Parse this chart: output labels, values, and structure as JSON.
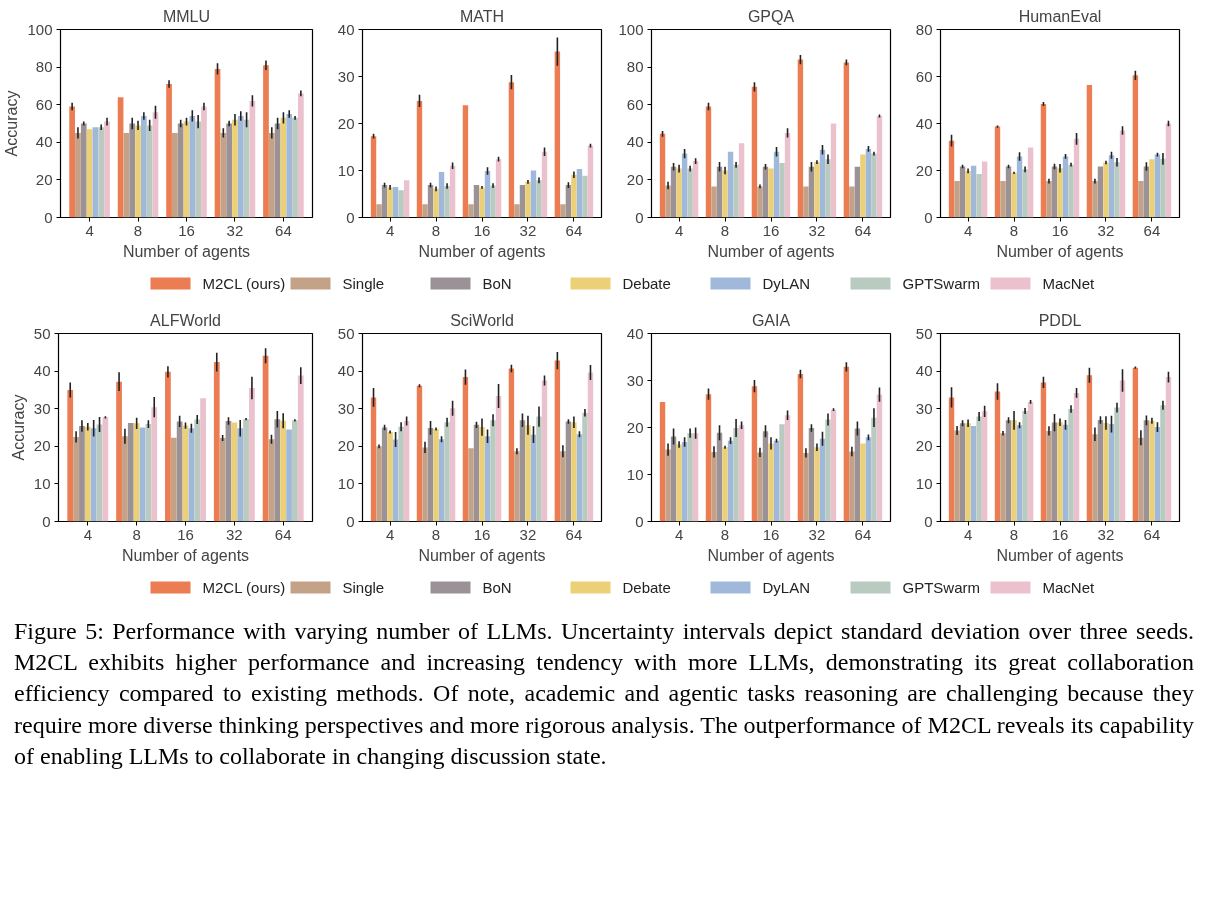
{
  "chart_data": [
    {
      "type": "bar",
      "title": "MMLU",
      "xlabel": "Number of agents",
      "ylabel": "Accuracy",
      "categories": [
        "4",
        "8",
        "16",
        "32",
        "64"
      ],
      "ylim": [
        0,
        100
      ],
      "yticks": [
        0,
        20,
        40,
        60,
        80,
        100
      ],
      "legend": "bottom",
      "series": [
        {
          "name": "M2CL (ours)",
          "color": "#ec7c52",
          "values": [
            59,
            64,
            71,
            79,
            81
          ],
          "errors": [
            2,
            null,
            2,
            3,
            2.5
          ]
        },
        {
          "name": "Single",
          "color": "#c4a287",
          "values": [
            45,
            45,
            45,
            45,
            45
          ],
          "errors": [
            3,
            null,
            null,
            2.5,
            3
          ]
        },
        {
          "name": "BoN",
          "color": "#9b9297",
          "values": [
            50,
            50,
            50,
            50,
            50
          ],
          "errors": [
            1,
            3,
            2,
            1.5,
            3
          ]
        },
        {
          "name": "Debate",
          "color": "#ebd077",
          "values": [
            47,
            49,
            51,
            52,
            53
          ],
          "errors": [
            null,
            2.5,
            2,
            3,
            3
          ]
        },
        {
          "name": "DyLAN",
          "color": "#a0b9da",
          "values": [
            48,
            54,
            54,
            54,
            55
          ],
          "errors": [
            null,
            2,
            3,
            2.5,
            2
          ]
        },
        {
          "name": "GPTSwarm",
          "color": "#b9cac1",
          "values": [
            48,
            49,
            51,
            52,
            53
          ],
          "errors": [
            1.5,
            3,
            3.5,
            4,
            1
          ]
        },
        {
          "name": "MacNet",
          "color": "#eac1cc",
          "values": [
            51,
            56,
            59,
            62,
            66
          ],
          "errors": [
            2,
            3.5,
            2,
            3,
            1.5
          ]
        }
      ]
    },
    {
      "type": "bar",
      "title": "MATH",
      "xlabel": "Number of agents",
      "categories": [
        "4",
        "8",
        "16",
        "32",
        "64"
      ],
      "ylim": [
        0,
        40
      ],
      "yticks": [
        0,
        10,
        20,
        30,
        40
      ],
      "series": [
        {
          "color": "#ec7c52",
          "values": [
            17.3,
            24.8,
            23.9,
            28.8,
            35.3
          ],
          "errors": [
            0.5,
            1.3,
            null,
            1.5,
            3
          ]
        },
        {
          "color": "#c4a287",
          "values": [
            2.8,
            2.8,
            2.8,
            2.8,
            2.8
          ]
        },
        {
          "color": "#9b9297",
          "values": [
            6.9,
            6.9,
            6.9,
            6.9,
            6.9
          ],
          "errors": [
            0.5,
            0.5,
            null,
            null,
            0.6
          ]
        },
        {
          "color": "#ebd077",
          "values": [
            6.4,
            6.1,
            6.4,
            7.6,
            9.1
          ],
          "errors": [
            0.5,
            0.5,
            0.3,
            0.4,
            0.7
          ]
        },
        {
          "color": "#a0b9da",
          "values": [
            6.5,
            9.7,
            9.9,
            10.0,
            10.3
          ],
          "errors": [
            null,
            null,
            0.8,
            null,
            null
          ]
        },
        {
          "color": "#b9cac1",
          "values": [
            5.8,
            6.7,
            6.8,
            7.9,
            8.9
          ],
          "errors": [
            null,
            0.6,
            0.5,
            0.6,
            null
          ]
        },
        {
          "color": "#eac1cc",
          "values": [
            7.9,
            11.0,
            12.4,
            14.0,
            15.3
          ],
          "errors": [
            null,
            0.7,
            0.5,
            0.9,
            0.4
          ]
        }
      ]
    },
    {
      "type": "bar",
      "title": "GPQA",
      "xlabel": "Number of agents",
      "categories": [
        "4",
        "8",
        "16",
        "32",
        "64"
      ],
      "ylim": [
        0,
        100
      ],
      "yticks": [
        0,
        20,
        40,
        60,
        80,
        100
      ],
      "series": [
        {
          "color": "#ec7c52",
          "values": [
            44.5,
            59,
            69.5,
            84,
            82.5
          ],
          "errors": [
            1.5,
            2,
            2.5,
            2.5,
            1.5
          ]
        },
        {
          "color": "#c4a287",
          "values": [
            17,
            16.5,
            16.5,
            16.5,
            16.5
          ],
          "errors": [
            2,
            null,
            1,
            null,
            null
          ]
        },
        {
          "color": "#9b9297",
          "values": [
            27,
            27,
            27,
            27,
            27
          ],
          "errors": [
            2,
            2.5,
            1.5,
            2.5,
            null
          ]
        },
        {
          "color": "#ebd077",
          "values": [
            26,
            25,
            26,
            29.5,
            33.5
          ],
          "errors": [
            2,
            2,
            null,
            1,
            null
          ]
        },
        {
          "color": "#a0b9da",
          "values": [
            34,
            35,
            35,
            36,
            36.5
          ],
          "errors": [
            2.5,
            null,
            2.5,
            2.5,
            1.5
          ]
        },
        {
          "color": "#b9cac1",
          "values": [
            26,
            28,
            29,
            31,
            34
          ],
          "errors": [
            1.5,
            1.5,
            null,
            2.5,
            1
          ]
        },
        {
          "color": "#eac1cc",
          "values": [
            30,
            39.5,
            45,
            50,
            54
          ],
          "errors": [
            1.5,
            null,
            2.5,
            null,
            0.8
          ]
        }
      ]
    },
    {
      "type": "bar",
      "title": "HumanEval",
      "xlabel": "Number of agents",
      "categories": [
        "4",
        "8",
        "16",
        "32",
        "64"
      ],
      "ylim": [
        0,
        80
      ],
      "yticks": [
        0,
        20,
        40,
        60,
        80
      ],
      "series": [
        {
          "color": "#ec7c52",
          "values": [
            32.7,
            38.7,
            48.3,
            56.4,
            60.5
          ],
          "errors": [
            2.5,
            0.5,
            0.8,
            null,
            2
          ]
        },
        {
          "color": "#c4a287",
          "values": [
            15.5,
            15.5,
            15.5,
            15.5,
            15.5
          ],
          "errors": [
            null,
            null,
            1,
            1,
            null
          ]
        },
        {
          "color": "#9b9297",
          "values": [
            21.7,
            21.7,
            21.7,
            21.7,
            21.7
          ],
          "errors": [
            0.7,
            0.7,
            1.2,
            null,
            1.8
          ]
        },
        {
          "color": "#ebd077",
          "values": [
            19.8,
            19,
            21,
            23.4,
            24.8
          ],
          "errors": [
            1,
            0.5,
            1.8,
            0.7,
            null
          ]
        },
        {
          "color": "#a0b9da",
          "values": [
            22,
            26,
            26,
            26.5,
            26.8
          ],
          "errors": [
            null,
            1.8,
            1,
            1.5,
            0.8
          ]
        },
        {
          "color": "#b9cac1",
          "values": [
            18.5,
            20.5,
            22.5,
            23.5,
            25
          ],
          "errors": [
            null,
            1.2,
            0.8,
            1.8,
            2.5
          ]
        },
        {
          "color": "#eac1cc",
          "values": [
            23.8,
            29.8,
            33.5,
            37,
            40
          ],
          "errors": [
            null,
            null,
            2.5,
            1.8,
            1.2
          ]
        }
      ]
    },
    {
      "type": "bar",
      "title": "ALFWorld",
      "xlabel": "Number of agents",
      "ylabel": "Accuracy",
      "categories": [
        "4",
        "8",
        "16",
        "32",
        "64"
      ],
      "ylim": [
        0,
        50
      ],
      "yticks": [
        0,
        10,
        20,
        30,
        40,
        50
      ],
      "legend": "bottom",
      "series": [
        {
          "name": "M2CL (ours)",
          "color": "#ec7c52",
          "values": [
            35,
            37.2,
            39.8,
            42.4,
            44.1
          ],
          "errors": [
            2,
            2.5,
            1.5,
            2.5,
            2
          ]
        },
        {
          "name": "Single",
          "color": "#c4a287",
          "values": [
            22.5,
            22.7,
            22.3,
            22.2,
            21.9
          ],
          "errors": [
            1.5,
            2,
            null,
            0.8,
            1.2
          ]
        },
        {
          "name": "BoN",
          "color": "#9b9297",
          "values": [
            25.4,
            26.2,
            26.6,
            26.7,
            27.2
          ],
          "errors": [
            1.5,
            null,
            1.5,
            1,
            2.2
          ]
        },
        {
          "name": "Debate",
          "color": "#ebd077",
          "values": [
            25.2,
            26.1,
            25.5,
            26.3,
            26.8
          ],
          "errors": [
            1,
            1.5,
            0.8,
            null,
            2
          ]
        },
        {
          "name": "DyLAN",
          "color": "#a0b9da",
          "values": [
            24.8,
            25,
            24.8,
            24.8,
            24.5
          ],
          "errors": [
            2.2,
            null,
            1.2,
            2.2,
            null
          ]
        },
        {
          "name": "GPTSwarm",
          "color": "#b9cac1",
          "values": [
            25.8,
            25.9,
            27.1,
            27.2,
            26.9
          ],
          "errors": [
            2,
            1,
            1.2,
            0.3,
            0.3
          ]
        },
        {
          "name": "MacNet",
          "color": "#eac1cc",
          "values": [
            27.7,
            30.4,
            32.8,
            35.5,
            38.8
          ],
          "errors": [
            0.3,
            2.7,
            null,
            3,
            2.2
          ]
        }
      ]
    },
    {
      "type": "bar",
      "title": "SciWorld",
      "xlabel": "Number of agents",
      "categories": [
        "4",
        "8",
        "16",
        "32",
        "64"
      ],
      "ylim": [
        0,
        50
      ],
      "yticks": [
        0,
        10,
        20,
        30,
        40,
        50
      ],
      "series": [
        {
          "color": "#ec7c52",
          "values": [
            33,
            36.1,
            38.4,
            40.7,
            42.8
          ],
          "errors": [
            2.5,
            0.4,
            2,
            1,
            2.3
          ]
        },
        {
          "color": "#c4a287",
          "values": [
            20,
            19.7,
            19.5,
            18.7,
            18.7
          ],
          "errors": [
            0.5,
            1.5,
            null,
            0.8,
            1.6
          ]
        },
        {
          "color": "#9b9297",
          "values": [
            25,
            24.9,
            25.7,
            26.9,
            26.6
          ],
          "errors": [
            0.7,
            1.8,
            0.8,
            1.8,
            0.6
          ]
        },
        {
          "color": "#ebd077",
          "values": [
            23.8,
            24.6,
            25.1,
            25.6,
            26.4
          ],
          "errors": [
            0.4,
            0.4,
            2.3,
            2.5,
            1.5
          ]
        },
        {
          "color": "#a0b9da",
          "values": [
            21.8,
            21.9,
            22.7,
            23.1,
            23.2
          ],
          "errors": [
            2,
            0.8,
            1.8,
            2.2,
            0.8
          ]
        },
        {
          "color": "#b9cac1",
          "values": [
            25.2,
            26.4,
            26.9,
            27.9,
            28.9
          ],
          "errors": [
            1.2,
            1.2,
            1.6,
            2.7,
            1
          ]
        },
        {
          "color": "#eac1cc",
          "values": [
            26.7,
            30.1,
            33.4,
            37.5,
            39.6
          ],
          "errors": [
            1.2,
            2,
            3.2,
            1.3,
            2
          ]
        }
      ]
    },
    {
      "type": "bar",
      "title": "GAIA",
      "xlabel": "Number of agents",
      "categories": [
        "4",
        "8",
        "16",
        "32",
        "64"
      ],
      "ylim": [
        0,
        40
      ],
      "yticks": [
        0,
        10,
        20,
        30,
        40
      ],
      "series": [
        {
          "color": "#ec7c52",
          "values": [
            25.4,
            27.1,
            28.8,
            31.4,
            32.9
          ],
          "errors": [
            null,
            1.2,
            1.3,
            0.9,
            1
          ]
        },
        {
          "color": "#c4a287",
          "values": [
            15.3,
            14.8,
            14.7,
            14.6,
            14.9
          ],
          "errors": [
            1.3,
            1.2,
            1,
            1,
            1
          ]
        },
        {
          "color": "#9b9297",
          "values": [
            18.1,
            18.9,
            19.2,
            19.9,
            19.8
          ],
          "errors": [
            1.7,
            1.6,
            1.3,
            0.8,
            1.5
          ]
        },
        {
          "color": "#ebd077",
          "values": [
            16.4,
            15.8,
            16.6,
            15.8,
            16.6
          ],
          "errors": [
            0.7,
            0.3,
            1.3,
            0.8,
            null
          ]
        },
        {
          "color": "#a0b9da",
          "values": [
            16.9,
            17.2,
            17.2,
            17.6,
            17.9
          ],
          "errors": [
            1,
            0.7,
            0.4,
            1.5,
            0.6
          ]
        },
        {
          "color": "#b9cac1",
          "values": [
            18.8,
            19.9,
            20.7,
            21.7,
            22.1
          ],
          "errors": [
            1,
            1.9,
            null,
            1.3,
            2
          ]
        },
        {
          "color": "#eac1cc",
          "values": [
            18.8,
            20.5,
            22.6,
            23.8,
            27.0
          ],
          "errors": [
            1.2,
            0.8,
            1,
            0.3,
            1.5
          ]
        }
      ]
    },
    {
      "type": "bar",
      "title": "PDDL",
      "xlabel": "Number of agents",
      "categories": [
        "4",
        "8",
        "16",
        "32",
        "64"
      ],
      "ylim": [
        0,
        50
      ],
      "yticks": [
        0,
        10,
        20,
        30,
        40,
        50
      ],
      "annotations": [
        "Figure 5: Performance with varying number of LLMs. Uncertainty intervals depict standard deviation over three seeds. M2CL exhibits higher performance and increasing tendency with more LLMs, demonstrating its great collaboration efficiency compared to existing methods. Of note, academic and agentic tasks reasoning are challenging because they require more diverse thinking perspectives and more rigorous analysis. The outperformance of M2CL reveals its capability of enabling LLMs to collaborate in changing discussion state."
      ],
      "series": [
        {
          "color": "#ec7c52",
          "values": [
            33,
            34.6,
            37,
            38.9,
            40.9
          ],
          "errors": [
            2.7,
            2.2,
            1.5,
            2,
            0.3
          ]
        },
        {
          "color": "#c4a287",
          "values": [
            24.2,
            23.5,
            24.1,
            23.2,
            22.3
          ],
          "errors": [
            1.2,
            0.6,
            1.2,
            1.8,
            2
          ]
        },
        {
          "color": "#9b9297",
          "values": [
            26.1,
            26.9,
            26.3,
            27,
            26.9
          ],
          "errors": [
            0.8,
            0.8,
            2.3,
            1,
            1.3
          ]
        },
        {
          "color": "#ebd077",
          "values": [
            26.1,
            26.9,
            26.4,
            26.2,
            26.8
          ],
          "errors": [
            1,
            2.5,
            1,
            1.8,
            0.8
          ]
        },
        {
          "color": "#a0b9da",
          "values": [
            25.4,
            25.6,
            25.7,
            25.9,
            25.1
          ],
          "errors": [
            null,
            0.8,
            1.3,
            2.2,
            1.3
          ]
        },
        {
          "color": "#b9cac1",
          "values": [
            27.9,
            29.4,
            29.9,
            30.3,
            30.9
          ],
          "errors": [
            1.2,
            0.8,
            1,
            1.3,
            1.2
          ]
        },
        {
          "color": "#eac1cc",
          "values": [
            29.3,
            31.8,
            34.2,
            37.5,
            38.4
          ],
          "errors": [
            1.5,
            0.5,
            1.3,
            3,
            1.4
          ]
        }
      ]
    }
  ]
}
